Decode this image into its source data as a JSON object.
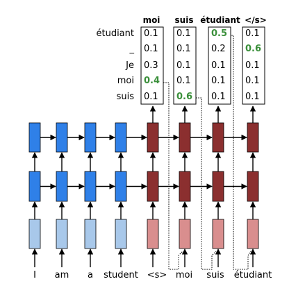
{
  "header_labels": [
    "moi",
    "suis",
    "étudiant",
    "</s>"
  ],
  "vocab_words": [
    "étudiant",
    "_",
    "Je",
    "moi",
    "suis"
  ],
  "softmax": [
    {
      "values": [
        "0.1",
        "0.1",
        "0.3",
        "0.4",
        "0.1"
      ],
      "highlight_index": 3
    },
    {
      "values": [
        "0.1",
        "0.1",
        "0.1",
        "0.1",
        "0.6"
      ],
      "highlight_index": 4
    },
    {
      "values": [
        "0.5",
        "0.2",
        "0.1",
        "0.1",
        "0.1"
      ],
      "highlight_index": 0
    },
    {
      "values": [
        "0.1",
        "0.6",
        "0.1",
        "0.1",
        "0.1"
      ],
      "highlight_index": 1
    }
  ],
  "source_tokens": [
    "I",
    "am",
    "a",
    "student"
  ],
  "target_tokens": [
    "<s>",
    "moi",
    "suis",
    "étudiant"
  ],
  "colors": {
    "encoder_hidden": "#2f80e8",
    "encoder_embedding": "#a8c8ea",
    "decoder_hidden": "#8b2f2f",
    "decoder_embedding": "#d98e8e",
    "highlight_value": "#3a8f3a"
  }
}
